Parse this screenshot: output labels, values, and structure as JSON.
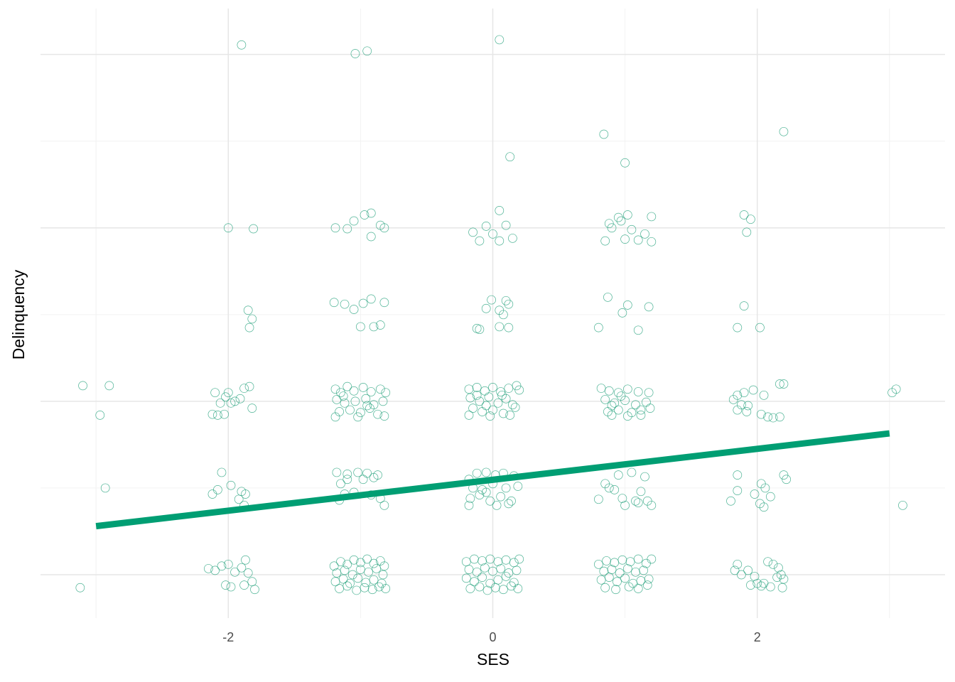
{
  "chart_data": {
    "type": "scatter",
    "x_label": "SES",
    "y_label": "Delinquency",
    "xlim": [
      -3.42,
      3.42
    ],
    "ylim": [
      -0.5,
      6.53
    ],
    "xticks": [
      -2,
      0,
      2
    ],
    "x_minor_grid": [
      -3,
      -1,
      1,
      3
    ],
    "y_major_grid": [
      0,
      2,
      4,
      6
    ],
    "y_minor_grid": [
      1,
      3,
      5
    ],
    "grid": true,
    "color": "#1b9e77",
    "x": [
      -1.9,
      -1.04,
      -0.95,
      0.05,
      0.84,
      2.2,
      0.13,
      1.0,
      -2.0,
      -1.81,
      -1.19,
      -1.1,
      -1.05,
      -0.97,
      -0.92,
      -0.85,
      -0.92,
      -0.82,
      -0.15,
      -0.05,
      0.0,
      0.05,
      0.1,
      0.05,
      -0.1,
      0.15,
      0.9,
      0.95,
      0.97,
      1.02,
      1.05,
      0.88,
      1.2,
      1.15,
      0.85,
      1.0,
      1.1,
      1.2,
      1.9,
      1.95,
      1.92,
      -1.85,
      -1.82,
      -1.84,
      -1.2,
      -1.12,
      -1.05,
      -0.98,
      -0.92,
      -0.82,
      -1.0,
      -0.9,
      -0.85,
      -0.05,
      -0.01,
      0.05,
      0.1,
      0.12,
      0.08,
      -0.1,
      -0.12,
      0.05,
      0.12,
      0.87,
      0.98,
      1.02,
      1.18,
      0.8,
      1.1,
      1.9,
      1.85,
      2.02,
      -3.1,
      -2.9,
      -2.97,
      -2.1,
      -2.0,
      -2.02,
      -1.95,
      -1.98,
      -2.06,
      -2.03,
      -2.08,
      -2.12,
      -1.88,
      -1.84,
      -1.82,
      -1.91,
      -1.19,
      -1.15,
      -1.1,
      -1.05,
      -0.98,
      -0.92,
      -0.85,
      -0.81,
      -1.18,
      -1.12,
      -1.04,
      -0.96,
      -0.9,
      -0.83,
      -1.16,
      -1.08,
      -1.0,
      -0.93,
      -0.87,
      -1.19,
      -1.02,
      -0.82,
      -1.13,
      -0.95,
      -0.18,
      -0.12,
      -0.06,
      0.0,
      0.06,
      0.12,
      0.18,
      0.2,
      -0.17,
      -0.1,
      -0.03,
      0.04,
      0.1,
      0.15,
      -0.15,
      -0.08,
      0.0,
      0.08,
      0.17,
      -0.18,
      -0.02,
      0.13,
      -0.12,
      0.07,
      -0.05,
      0.82,
      0.88,
      0.95,
      1.02,
      1.1,
      1.18,
      0.85,
      0.92,
      1.0,
      1.08,
      1.16,
      0.87,
      0.95,
      1.05,
      1.12,
      1.19,
      0.9,
      1.02,
      1.12,
      0.97,
      0.9,
      1.85,
      1.9,
      1.97,
      2.05,
      2.17,
      2.2,
      1.82,
      1.88,
      1.93,
      1.85,
      1.92,
      2.03,
      2.08,
      2.12,
      2.17,
      3.02,
      3.05,
      -2.93,
      -2.05,
      -2.08,
      -2.12,
      -1.98,
      -1.9,
      -1.92,
      -1.88,
      -1.87,
      -1.18,
      -1.1,
      -1.02,
      -0.95,
      -0.87,
      -1.15,
      -0.98,
      -0.9,
      -1.12,
      -1.05,
      -0.92,
      -0.85,
      -0.82,
      -1.16,
      -1.1,
      -0.18,
      -0.12,
      -0.05,
      0.02,
      0.08,
      0.16,
      -0.15,
      -0.08,
      0.0,
      0.1,
      -0.17,
      -0.1,
      -0.02,
      0.06,
      0.14,
      -0.18,
      0.03,
      0.12,
      0.19,
      -0.05,
      0.85,
      0.95,
      1.05,
      1.15,
      0.88,
      0.92,
      1.12,
      0.8,
      0.98,
      1.08,
      1.0,
      1.1,
      1.2,
      1.17,
      1.85,
      2.2,
      2.22,
      1.85,
      2.03,
      2.06,
      1.98,
      2.1,
      1.8,
      2.02,
      2.05,
      3.1,
      -3.12,
      -2.15,
      -2.1,
      -2.05,
      -2.0,
      -1.95,
      -1.87,
      -1.9,
      -1.85,
      -2.02,
      -1.98,
      -1.82,
      -1.8,
      -1.88,
      -1.2,
      -1.15,
      -1.1,
      -1.05,
      -1.0,
      -0.95,
      -0.9,
      -0.85,
      -0.82,
      -1.18,
      -1.12,
      -1.06,
      -1.0,
      -0.94,
      -0.88,
      -0.83,
      -1.19,
      -1.13,
      -1.08,
      -1.02,
      -0.96,
      -0.9,
      -0.84,
      -1.16,
      -1.1,
      -1.03,
      -0.97,
      -0.91,
      -0.86,
      -0.81,
      -0.2,
      -0.14,
      -0.08,
      -0.02,
      0.04,
      0.1,
      0.16,
      0.2,
      -0.18,
      -0.12,
      -0.06,
      0.0,
      0.06,
      0.12,
      0.18,
      -0.2,
      -0.14,
      -0.08,
      -0.02,
      0.04,
      0.1,
      0.16,
      -0.17,
      -0.1,
      -0.04,
      0.02,
      0.08,
      0.14,
      0.19,
      0.8,
      0.86,
      0.92,
      0.98,
      1.04,
      1.1,
      1.16,
      1.2,
      0.84,
      0.9,
      0.96,
      1.02,
      1.08,
      1.14,
      0.82,
      0.88,
      0.94,
      1.0,
      1.06,
      1.12,
      1.18,
      0.85,
      0.93,
      1.03,
      1.1,
      1.17,
      1.83,
      1.85,
      1.88,
      1.93,
      1.98,
      2.05,
      2.08,
      2.12,
      2.16,
      2.18,
      2.2,
      1.95,
      2.0,
      2.03,
      2.1,
      2.19,
      2.15
    ],
    "values": [
      6.11,
      6.01,
      6.04,
      6.17,
      5.08,
      5.11,
      4.82,
      4.75,
      4.0,
      3.99,
      4.0,
      3.99,
      4.08,
      4.15,
      4.17,
      4.03,
      3.9,
      4.0,
      3.95,
      4.02,
      3.93,
      4.2,
      4.03,
      3.85,
      3.85,
      3.88,
      4.0,
      4.12,
      4.08,
      4.15,
      3.98,
      4.05,
      4.13,
      3.93,
      3.85,
      3.87,
      3.86,
      3.84,
      4.15,
      4.1,
      3.95,
      3.05,
      2.95,
      2.85,
      3.14,
      3.12,
      3.06,
      3.13,
      3.18,
      3.14,
      2.86,
      2.86,
      2.88,
      3.07,
      3.17,
      3.05,
      3.16,
      3.12,
      3.0,
      2.83,
      2.84,
      2.86,
      2.85,
      3.2,
      3.02,
      3.11,
      3.09,
      2.85,
      2.82,
      3.1,
      2.85,
      2.85,
      2.18,
      2.18,
      1.84,
      2.1,
      2.1,
      2.05,
      2.0,
      1.98,
      1.98,
      1.85,
      1.84,
      1.85,
      2.15,
      2.17,
      1.92,
      2.03,
      2.14,
      2.1,
      2.17,
      2.12,
      2.16,
      2.11,
      2.14,
      2.1,
      2.02,
      1.98,
      2.0,
      2.03,
      1.96,
      2.0,
      1.88,
      1.9,
      1.87,
      1.92,
      1.85,
      1.82,
      1.82,
      1.83,
      2.06,
      1.95,
      2.14,
      2.16,
      2.12,
      2.16,
      2.11,
      2.15,
      2.18,
      2.13,
      2.04,
      2.0,
      2.05,
      1.98,
      2.03,
      1.96,
      1.92,
      1.88,
      1.9,
      1.86,
      1.93,
      1.84,
      1.83,
      1.84,
      2.07,
      2.07,
      1.95,
      2.15,
      2.12,
      2.1,
      2.14,
      2.11,
      2.1,
      2.02,
      1.98,
      2.01,
      1.96,
      1.99,
      1.88,
      1.9,
      1.87,
      1.9,
      1.92,
      1.84,
      1.83,
      1.84,
      2.06,
      1.95,
      2.07,
      2.1,
      2.13,
      2.07,
      2.2,
      2.2,
      2.02,
      1.96,
      1.95,
      1.9,
      1.88,
      1.85,
      1.82,
      1.81,
      1.82,
      2.1,
      2.14,
      1.0,
      1.18,
      0.98,
      0.93,
      1.03,
      0.96,
      0.87,
      0.8,
      0.93,
      1.18,
      1.16,
      1.18,
      1.17,
      1.15,
      1.05,
      1.1,
      1.12,
      0.93,
      0.95,
      0.92,
      0.88,
      0.8,
      0.86,
      1.1,
      1.1,
      1.17,
      1.18,
      1.15,
      1.17,
      1.14,
      1.0,
      0.98,
      1.05,
      1.0,
      0.88,
      0.92,
      0.85,
      0.9,
      0.85,
      0.8,
      0.8,
      0.82,
      1.02,
      0.95,
      1.05,
      1.15,
      1.18,
      1.13,
      1.0,
      0.98,
      0.96,
      0.87,
      0.88,
      0.85,
      0.8,
      0.83,
      0.8,
      0.85,
      1.15,
      1.15,
      1.1,
      0.97,
      1.05,
      1.0,
      0.93,
      0.9,
      0.85,
      0.82,
      0.78,
      0.8,
      -0.15,
      0.07,
      0.05,
      0.1,
      0.12,
      0.03,
      0.17,
      0.08,
      0.02,
      -0.12,
      -0.14,
      -0.08,
      -0.17,
      -0.12,
      0.1,
      0.15,
      0.12,
      0.17,
      0.14,
      0.18,
      0.13,
      0.16,
      0.1,
      0.02,
      0.05,
      0.0,
      0.06,
      0.03,
      0.07,
      0.0,
      -0.08,
      -0.05,
      -0.1,
      -0.04,
      -0.09,
      -0.06,
      -0.1,
      -0.16,
      -0.13,
      -0.18,
      -0.15,
      -0.17,
      -0.14,
      -0.16,
      0.15,
      0.18,
      0.16,
      0.18,
      0.15,
      0.17,
      0.14,
      0.18,
      0.06,
      0.03,
      0.08,
      0.04,
      0.07,
      0.02,
      0.05,
      -0.04,
      -0.08,
      -0.03,
      -0.1,
      -0.06,
      -0.02,
      -0.09,
      -0.16,
      -0.14,
      -0.18,
      -0.15,
      -0.17,
      -0.13,
      -0.16,
      0.12,
      0.16,
      0.14,
      0.17,
      0.15,
      0.18,
      0.13,
      0.18,
      0.04,
      0.06,
      0.02,
      0.07,
      0.03,
      0.05,
      -0.06,
      -0.03,
      -0.08,
      -0.04,
      -0.1,
      -0.07,
      -0.05,
      -0.15,
      -0.17,
      -0.14,
      -0.16,
      -0.12,
      0.05,
      0.12,
      0.0,
      0.05,
      -0.02,
      -0.1,
      0.15,
      0.12,
      0.08,
      0.0,
      -0.05,
      -0.12,
      -0.1,
      -0.13,
      -0.14,
      -0.15,
      -0.03
    ],
    "fit": {
      "x": [
        -3,
        3
      ],
      "values": [
        0.56,
        1.63
      ],
      "color": "#009e73"
    }
  }
}
